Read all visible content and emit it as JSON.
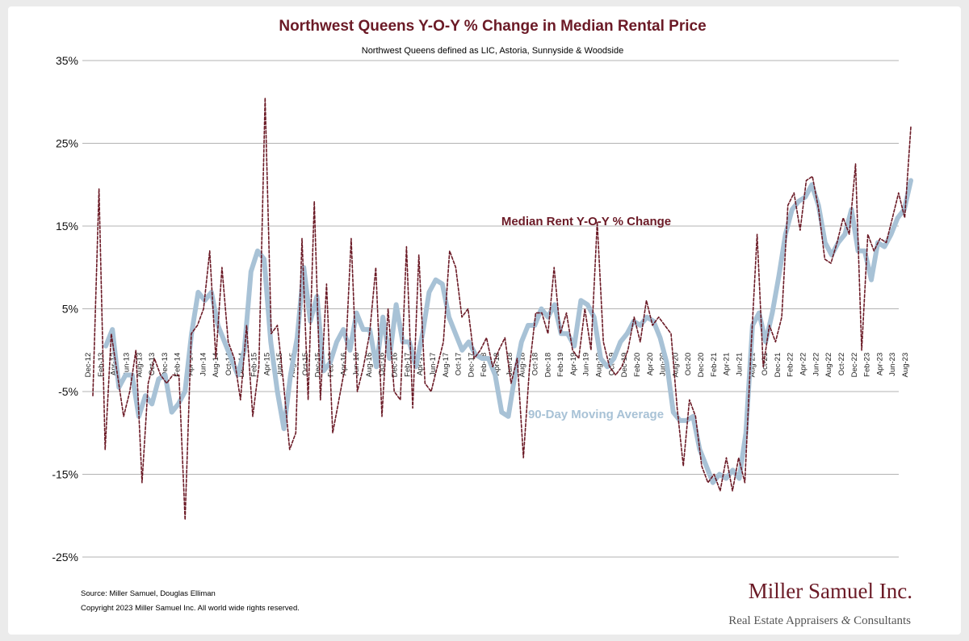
{
  "chart_data": {
    "type": "line",
    "title": "Northwest Queens Y-O-Y % Change in Median Rental Price",
    "subtitle": "Northwest Queens defined as LIC, Astoria, Sunnyside & Woodside",
    "y_ticks": [
      "35%",
      "25%",
      "15%",
      "5%",
      "-5%",
      "-15%",
      "-25%"
    ],
    "ylim": [
      -25,
      35
    ],
    "x_labels": [
      "Dec-12",
      "Feb-13",
      "Apr-13",
      "Jun-13",
      "Aug-13",
      "Oct-13",
      "Dec-13",
      "Feb-14",
      "Apr-14",
      "Jun-14",
      "Aug-14",
      "Oct-14",
      "Dec-14",
      "Feb-15",
      "Apr-15",
      "Jun-15",
      "Aug-15",
      "Oct-15",
      "Dec-15",
      "Feb-16",
      "Apr-16",
      "Jun-16",
      "Aug-16",
      "Oct-16",
      "Dec-16",
      "Feb-17",
      "Apr-17",
      "Jun-17",
      "Aug-17",
      "Oct-17",
      "Dec-17",
      "Feb-18",
      "Apr-18",
      "Jun-18",
      "Aug-18",
      "Oct-18",
      "Dec-18",
      "Feb-19",
      "Apr-19",
      "Jun-19",
      "Aug-19",
      "Oct-19",
      "Dec-19",
      "Feb-20",
      "Apr-20",
      "Jun-20",
      "Aug-20",
      "Oct-20",
      "Dec-20",
      "Feb-21",
      "Apr-21",
      "Jun-21",
      "Aug-21",
      "Oct-21",
      "Dec-21",
      "Feb-22",
      "Apr-22",
      "Jun-22",
      "Aug-22",
      "Oct-22",
      "Dec-22",
      "Feb-23",
      "Apr-23",
      "Jun-23",
      "Aug-23"
    ],
    "grid": true,
    "series": [
      {
        "name": "Median Rent Y-O-Y % Change",
        "color": "#6b1a26",
        "style": "dashed",
        "values": [
          -5.5,
          19.5,
          -12,
          2,
          -3,
          -8,
          -5,
          0,
          -16,
          -4,
          -1,
          -3,
          -4,
          -3,
          -3,
          -20.5,
          2,
          3,
          5,
          12,
          -1,
          10,
          1,
          -1,
          -6,
          3,
          -8,
          -2,
          30.5,
          2,
          3,
          -4,
          -12,
          -10,
          13.5,
          -6,
          18,
          -6,
          8,
          -10,
          -6,
          -2,
          13.5,
          -5,
          -2,
          2,
          10,
          -8,
          5,
          -5,
          -6,
          12.5,
          -7,
          11.5,
          -4,
          -5,
          -2,
          1,
          12,
          10,
          4,
          5,
          -1,
          0,
          1.5,
          -2,
          0,
          1.5,
          -4,
          -1,
          -13,
          -2,
          4.5,
          4.5,
          2,
          10,
          2,
          4.5,
          0,
          -1,
          5,
          0,
          15.5,
          1,
          -2,
          -3,
          -2,
          0,
          4,
          1,
          6,
          3,
          4,
          3,
          2,
          -7,
          -14,
          -6,
          -8,
          -14,
          -16,
          -15,
          -17,
          -13,
          -17,
          -13,
          -16,
          0,
          14,
          -2,
          3,
          1,
          4,
          17.5,
          19,
          14.5,
          20.5,
          21,
          17,
          11,
          10.5,
          13,
          16,
          14,
          22.5,
          0,
          14,
          12,
          13.5,
          13,
          16,
          19,
          16,
          27
        ]
      },
      {
        "name": "90-Day Moving Average",
        "color": "#a8c2d6",
        "style": "solid",
        "values": [
          0.5,
          2.5,
          -4.5,
          -3,
          -3,
          -8,
          -5.5,
          -6.5,
          -3.5,
          -3,
          -7.5,
          -6.5,
          -5,
          2,
          7,
          6,
          7,
          3,
          1,
          -1,
          -3,
          0,
          9.5,
          12,
          11,
          1,
          -5,
          -9.5,
          -3,
          1.5,
          10,
          3.5,
          6.5,
          -2.5,
          -1.5,
          1,
          2.5,
          0,
          4.5,
          2.5,
          2.5,
          -2,
          4,
          -1,
          5.5,
          1,
          1,
          -2,
          2,
          7,
          8.5,
          8,
          4,
          2,
          0,
          1,
          -0.5,
          -1,
          -1,
          -3,
          -7.5,
          -8,
          -3,
          1,
          3,
          3,
          5,
          4,
          5.5,
          2,
          2,
          0.5,
          6,
          5.5,
          4,
          -1,
          -2,
          -1,
          1,
          2,
          3.5,
          3,
          4,
          3.5,
          1.5,
          -1.5,
          -7.5,
          -8.5,
          -8.5,
          -8,
          -12,
          -14,
          -16,
          -15,
          -15.5,
          -14.5,
          -15.5,
          -10,
          3,
          4.5,
          1,
          4.5,
          9,
          14,
          17,
          18,
          18.5,
          20,
          17.5,
          13,
          11.5,
          13,
          14,
          17,
          12,
          12,
          8.5,
          13,
          12.5,
          14,
          16,
          17,
          20.5
        ]
      }
    ],
    "annotations": [
      {
        "text": "Median Rent Y-O-Y % Change"
      },
      {
        "text": "90-Day Moving Average"
      }
    ]
  },
  "footer": {
    "source": "Source: Miller Samuel, Douglas Elliman",
    "copyright": "Copyright 2023 Miller Samuel Inc.  All world wide rights reserved."
  },
  "brand": {
    "name": "Miller Samuel Inc.",
    "tagline_part1": "Real Estate Appraisers",
    "tagline_amp": "&",
    "tagline_part2": "Consultants"
  }
}
